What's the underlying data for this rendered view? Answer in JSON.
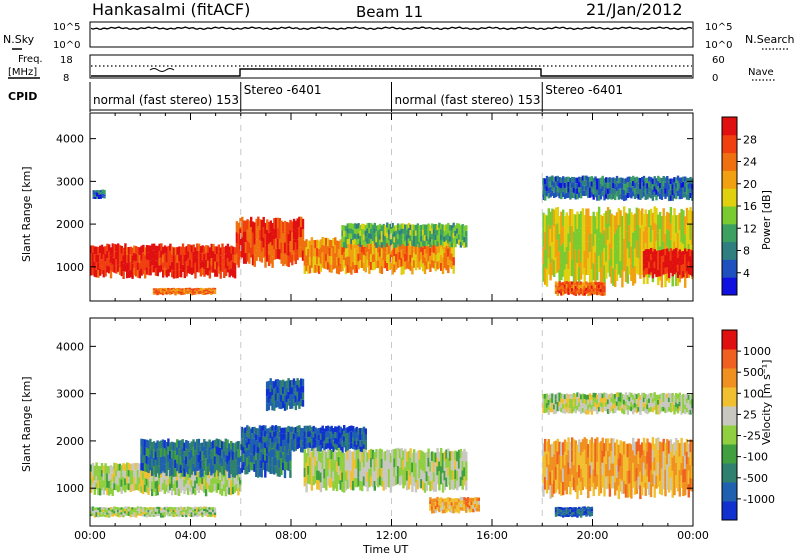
{
  "header": {
    "station": "Hankasalmi (fitACF)",
    "beam": "Beam 11",
    "date": "21/Jan/2012"
  },
  "top_strip": {
    "left_label": "N.Sky",
    "right_label": "N.Search",
    "tick_top": "10^5",
    "tick_bottom": "10^0",
    "noise_level": 0.75
  },
  "freq_strip": {
    "left_label_1": "Freq.",
    "left_label_2": "[MHz]",
    "left_ticks": [
      "18",
      "8"
    ],
    "right_label": "Nave",
    "right_ticks": [
      "60",
      "0"
    ]
  },
  "cpid": {
    "label": "CPID",
    "segments": [
      {
        "start": 0,
        "text": "normal (fast stereo) 153"
      },
      {
        "start": 6,
        "text": "Stereo -6401"
      },
      {
        "start": 12,
        "text": "normal (fast stereo) 153"
      },
      {
        "start": 18,
        "text": "Stereo -6401"
      }
    ]
  },
  "chart_data": [
    {
      "type": "heatmap",
      "ylabel": "Slant Range [km]",
      "yticks": [
        "1000",
        "2000",
        "3000",
        "4000"
      ],
      "ylim": [
        200,
        4600
      ],
      "x_range_hours": [
        0,
        24
      ],
      "colorbar": {
        "label": "Power [dB]",
        "ticks": [
          "4",
          "8",
          "12",
          "16",
          "20",
          "24",
          "28"
        ],
        "colors": [
          "#1010e0",
          "#1f50c0",
          "#2f7f80",
          "#3ca060",
          "#7acb30",
          "#e0d010",
          "#f0a010",
          "#f07010",
          "#f04010",
          "#e01010"
        ]
      },
      "bands": [
        {
          "t0": 0,
          "t1": 5.8,
          "r0": 800,
          "r1": 1500,
          "level": 0.92
        },
        {
          "t0": 5.8,
          "t1": 8.5,
          "r0": 1100,
          "r1": 2100,
          "level": 0.85
        },
        {
          "t0": 8.5,
          "t1": 14.5,
          "r0": 900,
          "r1": 1650,
          "level": 0.7
        },
        {
          "t0": 10.0,
          "t1": 15.0,
          "r0": 1500,
          "r1": 2000,
          "level": 0.4
        },
        {
          "t0": 0.1,
          "t1": 0.6,
          "r0": 2600,
          "r1": 2800,
          "level": 0.2
        },
        {
          "t0": 2.5,
          "t1": 5.0,
          "r0": 350,
          "r1": 500,
          "level": 0.75
        },
        {
          "t0": 18.0,
          "t1": 24.0,
          "r0": 700,
          "r1": 2300,
          "level": 0.55
        },
        {
          "t0": 18.0,
          "t1": 24.0,
          "r0": 2600,
          "r1": 3100,
          "level": 0.2
        },
        {
          "t0": 18.5,
          "t1": 20.5,
          "r0": 350,
          "r1": 650,
          "level": 0.8
        },
        {
          "t0": 22.0,
          "t1": 24.0,
          "r0": 800,
          "r1": 1400,
          "level": 0.95
        }
      ]
    },
    {
      "type": "heatmap",
      "ylabel": "Slant Range [km]",
      "yticks": [
        "1000",
        "2000",
        "3000",
        "4000"
      ],
      "ylim": [
        200,
        4600
      ],
      "x_range_hours": [
        0,
        24
      ],
      "xticks": [
        "00:00",
        "04:00",
        "08:00",
        "12:00",
        "16:00",
        "20:00",
        "00:00"
      ],
      "xlabel": "Time UT",
      "colorbar": {
        "label": "Velocity [m s⁻¹]",
        "ticks": [
          "1000",
          "500",
          "100",
          "25",
          "-25",
          "-100",
          "-500",
          "-1000"
        ],
        "colors": [
          "#1030d0",
          "#2060b0",
          "#308070",
          "#40a040",
          "#90d040",
          "#c8c8c0",
          "#f0c030",
          "#f09020",
          "#f06020",
          "#e01010"
        ]
      },
      "bands": [
        {
          "t0": 0,
          "t1": 6.0,
          "r0": 900,
          "r1": 1500,
          "level": 0.5
        },
        {
          "t0": 2.0,
          "t1": 8.0,
          "r0": 1300,
          "r1": 2000,
          "level": 0.2
        },
        {
          "t0": 6.0,
          "t1": 11.0,
          "r0": 1800,
          "r1": 2300,
          "level": 0.15
        },
        {
          "t0": 7.0,
          "t1": 8.5,
          "r0": 2700,
          "r1": 3300,
          "level": 0.15
        },
        {
          "t0": 8.5,
          "t1": 15.0,
          "r0": 1000,
          "r1": 1800,
          "level": 0.5
        },
        {
          "t0": 0,
          "t1": 5.0,
          "r0": 400,
          "r1": 600,
          "level": 0.5
        },
        {
          "t0": 13.5,
          "t1": 15.5,
          "r0": 500,
          "r1": 800,
          "level": 0.7
        },
        {
          "t0": 18.0,
          "t1": 24.0,
          "r0": 900,
          "r1": 2000,
          "level": 0.7
        },
        {
          "t0": 18.0,
          "t1": 24.0,
          "r0": 2600,
          "r1": 3000,
          "level": 0.5
        },
        {
          "t0": 18.5,
          "t1": 20.0,
          "r0": 400,
          "r1": 600,
          "level": 0.15
        }
      ]
    }
  ]
}
